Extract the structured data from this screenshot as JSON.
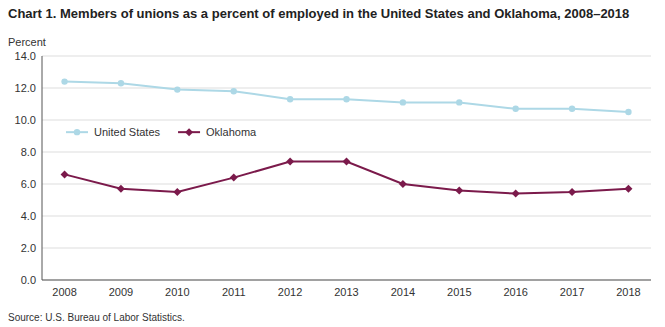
{
  "chart_data": {
    "type": "line",
    "title": "Chart 1.  Members of unions as a percent of employed in the United States and Oklahoma, 2008–2018",
    "y_label": "Percent",
    "annotations": [
      "Source: U.S. Bureau of Labor Statistics."
    ],
    "x": [
      2008,
      2009,
      2010,
      2011,
      2012,
      2013,
      2014,
      2015,
      2016,
      2017,
      2018
    ],
    "series": [
      {
        "name": "United States",
        "color": "#add8e6",
        "marker": "circle",
        "line_style": "solid",
        "values": [
          12.4,
          12.3,
          11.9,
          11.8,
          11.3,
          11.3,
          11.1,
          11.1,
          10.7,
          10.7,
          10.5
        ]
      },
      {
        "name": "Oklahoma",
        "color": "#7b1a4b",
        "marker": "diamond",
        "line_style": "solid",
        "values": [
          6.6,
          5.7,
          5.5,
          6.4,
          7.4,
          7.4,
          6.0,
          5.6,
          5.4,
          5.5,
          5.7
        ]
      }
    ],
    "xlim": [
      2007.6,
      2018.4
    ],
    "xticks": [
      2008,
      2009,
      2010,
      2011,
      2012,
      2013,
      2014,
      2015,
      2016,
      2017,
      2018
    ],
    "ylim": [
      0,
      14.0
    ],
    "yticks": [
      {
        "value": 0.0,
        "label": "0.0"
      },
      {
        "value": 2.0,
        "label": "2.0"
      },
      {
        "value": 4.0,
        "label": "4.0"
      },
      {
        "value": 6.0,
        "label": "6.0"
      },
      {
        "value": 8.0,
        "label": "8.0"
      },
      {
        "value": 10.0,
        "label": "10.0"
      },
      {
        "value": 12.0,
        "label": "12.0"
      },
      {
        "value": 14.0,
        "label": "14.0"
      }
    ],
    "grid": true,
    "legend": "upper left"
  }
}
